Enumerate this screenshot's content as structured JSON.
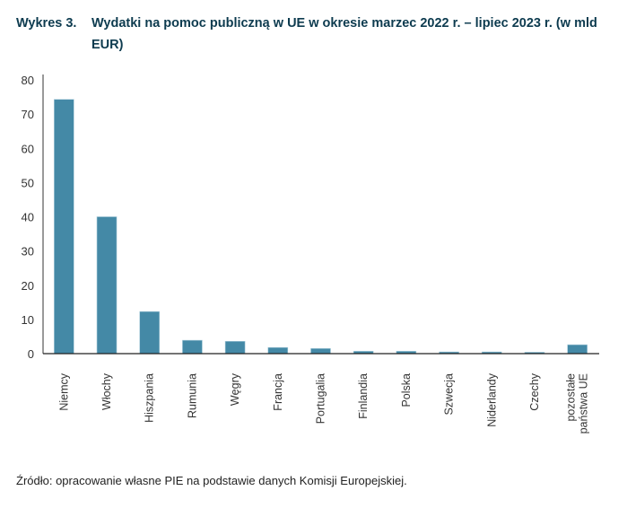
{
  "title": {
    "number": "Wykres 3.",
    "text": "Wydatki na pomoc publiczną w UE w okresie marzec 2022 r. – lipiec 2023 r. (w mld EUR)"
  },
  "source": "Źródło: opracowanie własne PIE na podstawie danych Komisji Europejskiej.",
  "chart_data": {
    "type": "bar",
    "title": "Wydatki na pomoc publiczną w UE w okresie marzec 2022 r. – lipiec 2023 r. (w mld EUR)",
    "xlabel": "",
    "ylabel": "",
    "categories": [
      "Niemcy",
      "Włochy",
      "Hiszpania",
      "Rumunia",
      "Węgry",
      "Francja",
      "Portugalia",
      "Finlandia",
      "Polska",
      "Szwecja",
      "Niderlandy",
      "Czechy",
      "pozostałe\npaństwa UE"
    ],
    "values": [
      74.3,
      40.0,
      12.3,
      3.9,
      3.6,
      1.8,
      1.5,
      0.7,
      0.7,
      0.5,
      0.5,
      0.4,
      2.6
    ],
    "ylim": [
      0,
      80
    ],
    "yticks": [
      "0",
      "10",
      "20",
      "30",
      "40",
      "50",
      "60",
      "70",
      "80"
    ],
    "grid": false,
    "color": "#4489a6"
  }
}
